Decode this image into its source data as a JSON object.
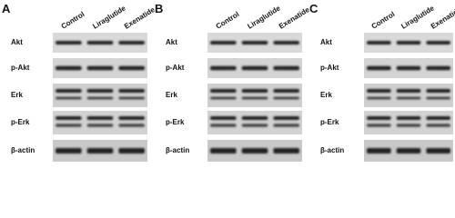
{
  "panels": [
    {
      "label": "A",
      "columns": [
        "Control",
        "Liraglutide",
        "Exenatide"
      ],
      "rows": [
        "Akt",
        "p-Akt",
        "Erk",
        "p-Erk",
        "β-actin"
      ]
    },
    {
      "label": "B",
      "columns": [
        "Control",
        "Liraglutide",
        "Exenatide"
      ],
      "rows": [
        "Akt",
        "p-Akt",
        "Erk",
        "p-Erk",
        "β-actin"
      ]
    },
    {
      "label": "C",
      "columns": [
        "Control",
        "Liraglutide",
        "Exenatide"
      ],
      "rows": [
        "Akt",
        "p-Akt",
        "Erk",
        "p-Erk",
        "β-actin"
      ]
    }
  ]
}
